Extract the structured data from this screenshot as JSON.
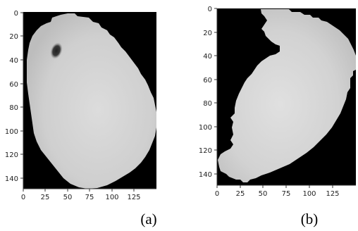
{
  "panels": [
    {
      "id": "a",
      "caption": "(a)",
      "frame_color": "#000000",
      "cell_color": "#d2d2d2",
      "spot_color": "#2a2a2a",
      "x_ticks": [
        {
          "label": "0"
        },
        {
          "label": "25"
        },
        {
          "label": "50"
        },
        {
          "label": "75"
        },
        {
          "label": "100"
        },
        {
          "label": "125"
        }
      ],
      "y_ticks": [
        {
          "label": "0"
        },
        {
          "label": "20"
        },
        {
          "label": "40"
        },
        {
          "label": "60"
        },
        {
          "label": "80"
        },
        {
          "label": "100"
        },
        {
          "label": "120"
        },
        {
          "label": "140"
        }
      ]
    },
    {
      "id": "b",
      "caption": "(b)",
      "frame_color": "#000000",
      "cell_color": "#d4d4d4",
      "x_ticks": [
        {
          "label": "0"
        },
        {
          "label": "25"
        },
        {
          "label": "50"
        },
        {
          "label": "75"
        },
        {
          "label": "100"
        },
        {
          "label": "125"
        }
      ],
      "y_ticks": [
        {
          "label": "0"
        },
        {
          "label": "20"
        },
        {
          "label": "40"
        },
        {
          "label": "60"
        },
        {
          "label": "80"
        },
        {
          "label": "100"
        },
        {
          "label": "120"
        },
        {
          "label": "140"
        }
      ]
    }
  ]
}
